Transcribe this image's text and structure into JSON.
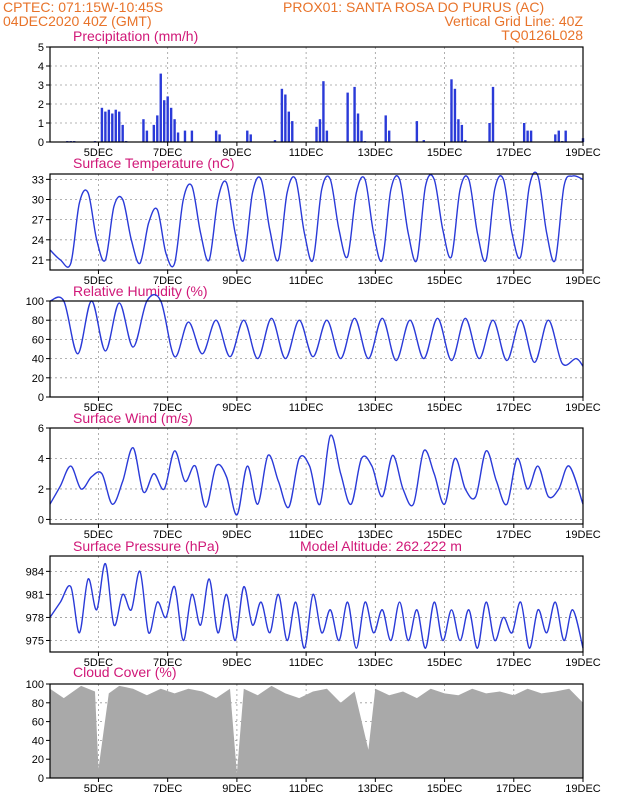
{
  "header": {
    "line1_left": "CPTEC:   071:15W-10:45S",
    "line1_right": "PROX01: SANTA ROSA DO PURUS (AC)",
    "line2_left": "04DEC2020 40Z (GMT)",
    "line2_right": "Vertical Grid Line: 40Z",
    "line3_right": "TQ0126L028"
  },
  "colors": {
    "header": "#e8732a",
    "title": "#d01878",
    "series": "#2a3ad8",
    "cloud": "#a9a9a9"
  },
  "x_axis": {
    "ticks": [
      "5DEC",
      "7DEC",
      "9DEC",
      "11DEC",
      "13DEC",
      "15DEC",
      "17DEC",
      "19DEC"
    ],
    "tick_days": [
      1,
      3,
      5,
      7,
      9,
      11,
      13,
      15
    ],
    "range_days": [
      -0.4,
      15
    ]
  },
  "chart_data": [
    {
      "id": "precip",
      "type": "bar",
      "title": "Precipitation (mm/h)",
      "ylim": [
        0,
        5
      ],
      "yticks": [
        0,
        1,
        2,
        3,
        4,
        5
      ],
      "x_days": [
        0.1,
        0.2,
        0.3,
        0.9,
        1.1,
        1.2,
        1.3,
        1.4,
        1.5,
        1.6,
        1.7,
        1.8,
        2.3,
        2.4,
        2.6,
        2.7,
        2.8,
        2.9,
        3.0,
        3.1,
        3.2,
        3.3,
        3.5,
        3.7,
        4.4,
        4.5,
        5.3,
        5.4,
        6.1,
        6.3,
        6.4,
        6.5,
        6.6,
        7.3,
        7.4,
        7.5,
        7.6,
        8.2,
        8.4,
        8.5,
        8.6,
        8.7,
        9.3,
        9.4,
        10.2,
        10.4,
        11.2,
        11.3,
        11.4,
        11.5,
        11.6,
        12.3,
        12.4,
        13.3,
        13.4,
        13.5,
        14.2,
        14.3,
        14.4,
        14.5,
        15.0
      ],
      "values": [
        0.05,
        0.05,
        0.05,
        0.05,
        1.8,
        1.6,
        1.7,
        1.5,
        1.7,
        1.6,
        0.9,
        0.05,
        1.2,
        0.6,
        0.9,
        1.4,
        3.6,
        2.2,
        2.4,
        1.8,
        1.2,
        0.5,
        0.6,
        0.6,
        0.6,
        0.4,
        0.6,
        0.4,
        0.1,
        2.8,
        2.5,
        1.6,
        1.1,
        0.8,
        1.2,
        3.2,
        0.6,
        2.6,
        2.9,
        1.5,
        0.6,
        0.05,
        1.4,
        0.6,
        1.1,
        0.1,
        3.3,
        2.8,
        1.2,
        0.9,
        0.1,
        1.0,
        2.9,
        1.0,
        0.6,
        0.6,
        0.4,
        0.6,
        0.05,
        0.6,
        0.2
      ]
    },
    {
      "id": "temp",
      "type": "line",
      "title": "Surface Temperature (nC)",
      "ylim": [
        19.5,
        33.8
      ],
      "yticks": [
        21,
        24,
        27,
        30,
        33
      ],
      "x_days": [
        -0.4,
        -0.1,
        0.2,
        0.45,
        0.7,
        0.95,
        1.2,
        1.45,
        1.7,
        1.95,
        2.2,
        2.45,
        2.7,
        2.95,
        3.2,
        3.45,
        3.7,
        3.95,
        4.2,
        4.45,
        4.7,
        4.95,
        5.2,
        5.45,
        5.7,
        5.95,
        6.2,
        6.45,
        6.7,
        6.95,
        7.2,
        7.45,
        7.7,
        7.95,
        8.2,
        8.45,
        8.7,
        8.95,
        9.2,
        9.45,
        9.7,
        9.95,
        10.2,
        10.45,
        10.7,
        10.95,
        11.2,
        11.45,
        11.7,
        11.95,
        12.2,
        12.45,
        12.7,
        12.95,
        13.2,
        13.45,
        13.7,
        13.95,
        14.2,
        14.45,
        14.7,
        15.0
      ],
      "values": [
        22.5,
        21.0,
        20.5,
        29.5,
        31.0,
        24.0,
        21.0,
        29.0,
        30.0,
        24.0,
        20.5,
        26.5,
        28.5,
        22.0,
        20.5,
        30.0,
        32.0,
        25.0,
        21.0,
        30.0,
        32.5,
        25.0,
        21.0,
        31.0,
        33.0,
        25.5,
        21.0,
        31.0,
        33.0,
        25.0,
        21.0,
        31.5,
        33.0,
        25.5,
        21.5,
        31.0,
        33.0,
        25.0,
        21.0,
        31.5,
        33.0,
        25.0,
        21.0,
        32.0,
        33.0,
        25.5,
        21.5,
        31.5,
        33.0,
        25.0,
        21.0,
        31.5,
        33.0,
        25.0,
        21.5,
        32.0,
        33.5,
        25.0,
        21.0,
        32.0,
        33.5,
        33.0
      ]
    },
    {
      "id": "rh",
      "type": "line",
      "title": "Relative Humidity (%)",
      "ylim": [
        0,
        100
      ],
      "yticks": [
        0,
        20,
        40,
        60,
        80,
        100
      ],
      "x_days": [
        -0.4,
        0,
        0.4,
        0.8,
        1.2,
        1.6,
        2.0,
        2.4,
        2.8,
        3.2,
        3.6,
        4.0,
        4.4,
        4.8,
        5.2,
        5.6,
        6.0,
        6.4,
        6.8,
        7.2,
        7.6,
        8.0,
        8.4,
        8.8,
        9.2,
        9.6,
        10.0,
        10.4,
        10.8,
        11.2,
        11.6,
        12.0,
        12.4,
        12.8,
        13.2,
        13.6,
        14.0,
        14.4,
        14.8,
        15.0
      ],
      "values": [
        100,
        100,
        45,
        100,
        48,
        98,
        52,
        100,
        100,
        42,
        78,
        45,
        80,
        42,
        80,
        40,
        82,
        40,
        80,
        42,
        80,
        40,
        82,
        40,
        82,
        38,
        80,
        40,
        82,
        38,
        82,
        40,
        80,
        38,
        80,
        36,
        80,
        35,
        40,
        32
      ]
    },
    {
      "id": "wind",
      "type": "line",
      "title": "Surface Wind (m/s)",
      "ylim": [
        -0.3,
        6
      ],
      "yticks": [
        0,
        2,
        4,
        6
      ],
      "x_days": [
        -0.4,
        -0.1,
        0.2,
        0.5,
        0.8,
        1.1,
        1.4,
        1.7,
        2.0,
        2.3,
        2.6,
        2.9,
        3.2,
        3.5,
        3.8,
        4.1,
        4.4,
        4.7,
        5.0,
        5.3,
        5.6,
        5.9,
        6.2,
        6.5,
        6.8,
        7.1,
        7.4,
        7.7,
        8.0,
        8.3,
        8.6,
        8.9,
        9.2,
        9.5,
        9.8,
        10.1,
        10.4,
        10.7,
        11.0,
        11.3,
        11.6,
        11.9,
        12.2,
        12.5,
        12.8,
        13.1,
        13.4,
        13.7,
        14.0,
        14.3,
        14.6,
        15.0
      ],
      "values": [
        1.0,
        2.2,
        3.5,
        2.0,
        2.8,
        3.0,
        1.0,
        2.5,
        4.7,
        1.8,
        3.0,
        2.0,
        4.5,
        2.5,
        3.5,
        0.8,
        3.5,
        2.8,
        0.3,
        3.5,
        1.0,
        4.2,
        2.5,
        0.8,
        4.0,
        3.5,
        1.0,
        5.5,
        3.0,
        1.0,
        4.0,
        3.5,
        1.5,
        4.2,
        2.0,
        1.0,
        4.5,
        3.0,
        1.0,
        4.0,
        2.0,
        1.5,
        4.5,
        2.5,
        1.0,
        4.0,
        2.0,
        3.5,
        1.5,
        2.0,
        3.5,
        1.0
      ]
    },
    {
      "id": "pres",
      "type": "line",
      "title": "Surface Pressure (hPa)",
      "annotation": "Model Altitude: 262.222 m",
      "ylim": [
        973.5,
        986
      ],
      "yticks": [
        975,
        978,
        981,
        984
      ],
      "x_days": [
        -0.4,
        -0.1,
        0.2,
        0.45,
        0.7,
        0.95,
        1.2,
        1.45,
        1.7,
        1.95,
        2.2,
        2.45,
        2.7,
        2.95,
        3.2,
        3.45,
        3.7,
        3.95,
        4.2,
        4.45,
        4.7,
        4.95,
        5.2,
        5.45,
        5.7,
        5.95,
        6.2,
        6.45,
        6.7,
        6.95,
        7.2,
        7.45,
        7.7,
        7.95,
        8.2,
        8.45,
        8.7,
        8.95,
        9.2,
        9.45,
        9.7,
        9.95,
        10.2,
        10.45,
        10.7,
        10.95,
        11.2,
        11.45,
        11.7,
        11.95,
        12.2,
        12.45,
        12.7,
        12.95,
        13.2,
        13.45,
        13.7,
        13.95,
        14.2,
        14.45,
        14.7,
        15.0
      ],
      "values": [
        978,
        980,
        982,
        976,
        983,
        979,
        985,
        977,
        981,
        979,
        984,
        976,
        980,
        978,
        982,
        975,
        981,
        977,
        983,
        976,
        981,
        975,
        982,
        977,
        980,
        976,
        981,
        975,
        980,
        974,
        981,
        976,
        979,
        975,
        980,
        974,
        980,
        976,
        979,
        975,
        980,
        975,
        979,
        974,
        980,
        975,
        979,
        975,
        979,
        974,
        980,
        975,
        978,
        976,
        980,
        974,
        979,
        976,
        980,
        975,
        979,
        974
      ]
    },
    {
      "id": "cloud",
      "type": "area",
      "title": "Cloud Cover (%)",
      "ylim": [
        0,
        100
      ],
      "yticks": [
        0,
        20,
        40,
        60,
        80,
        100
      ],
      "x_days": [
        -0.4,
        0,
        0.5,
        0.9,
        1.0,
        1.3,
        1.6,
        2.0,
        2.4,
        2.8,
        3.2,
        3.6,
        4.0,
        4.4,
        4.8,
        5.0,
        5.2,
        5.6,
        6.0,
        6.4,
        6.8,
        7.2,
        7.6,
        8.0,
        8.4,
        8.8,
        9.0,
        9.4,
        9.8,
        10.2,
        10.6,
        11.0,
        11.4,
        11.8,
        12.2,
        12.6,
        13.0,
        13.4,
        13.8,
        14.2,
        14.6,
        15.0
      ],
      "values": [
        95,
        85,
        98,
        92,
        10,
        90,
        98,
        95,
        88,
        95,
        90,
        95,
        92,
        85,
        95,
        5,
        95,
        88,
        98,
        90,
        85,
        92,
        95,
        80,
        92,
        30,
        95,
        88,
        92,
        85,
        95,
        90,
        88,
        95,
        90,
        92,
        88,
        95,
        90,
        92,
        95,
        80
      ]
    }
  ]
}
